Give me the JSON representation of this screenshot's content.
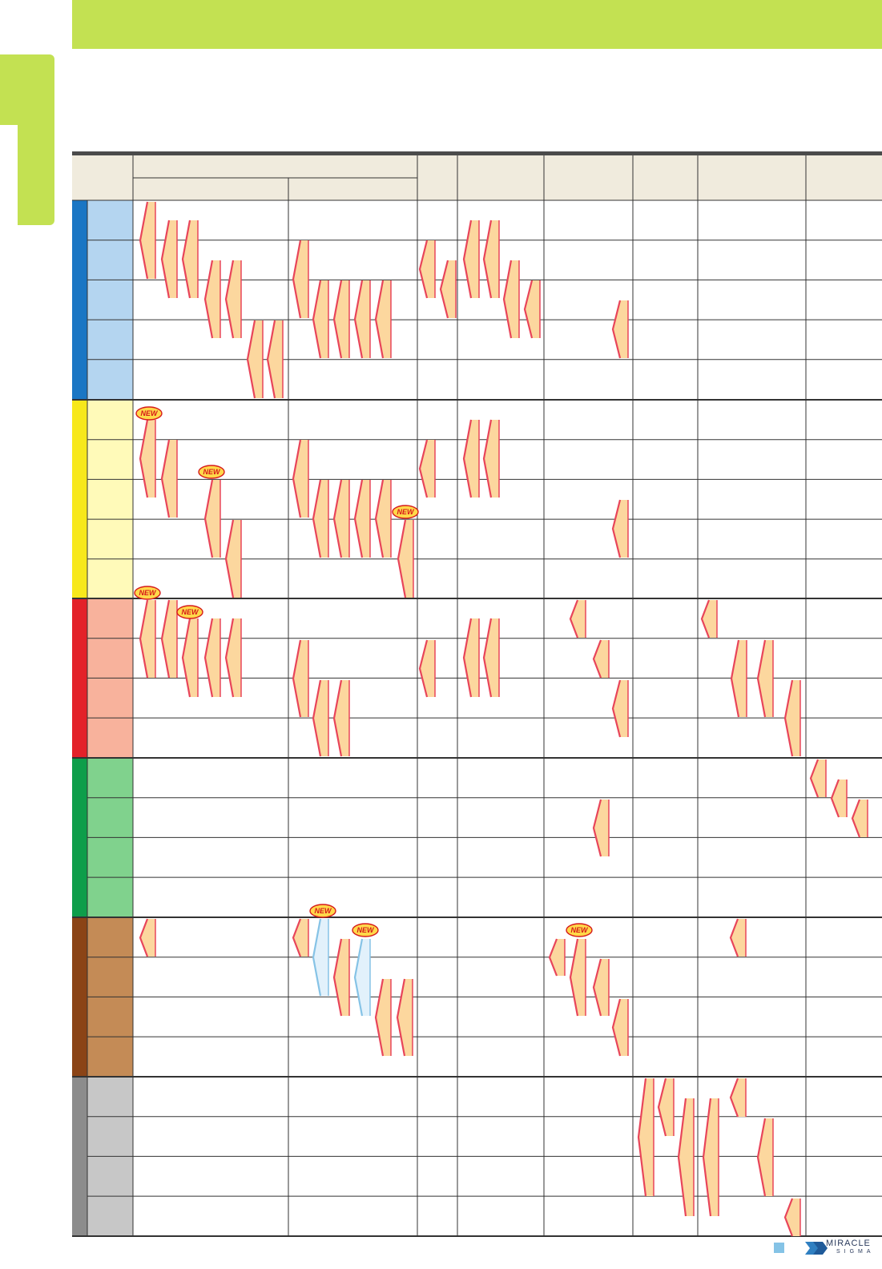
{
  "badge_label": "NEW",
  "brand": {
    "name": "MIRACLE",
    "sub": "SIGMA"
  },
  "colors": {
    "banner": "#c3e152",
    "groups": [
      {
        "bar": "#1a76c4",
        "cell": "#b4d5f0"
      },
      {
        "bar": "#f7e81b",
        "cell": "#fffab9"
      },
      {
        "bar": "#e32129",
        "cell": "#f8b29c"
      },
      {
        "bar": "#0e9e4a",
        "cell": "#80d28d"
      },
      {
        "bar": "#8b4416",
        "cell": "#c48b56"
      },
      {
        "bar": "#8c8c8c",
        "cell": "#c7c7c7"
      }
    ],
    "marker_fill": "#fcd79e",
    "marker_edge": "#e8455a",
    "blue_marker_fill": "#e2f1fb",
    "blue_marker_edge": "#86c3e6",
    "header_fill": "#f0ebdd",
    "grid_line": "#333333"
  }
}
